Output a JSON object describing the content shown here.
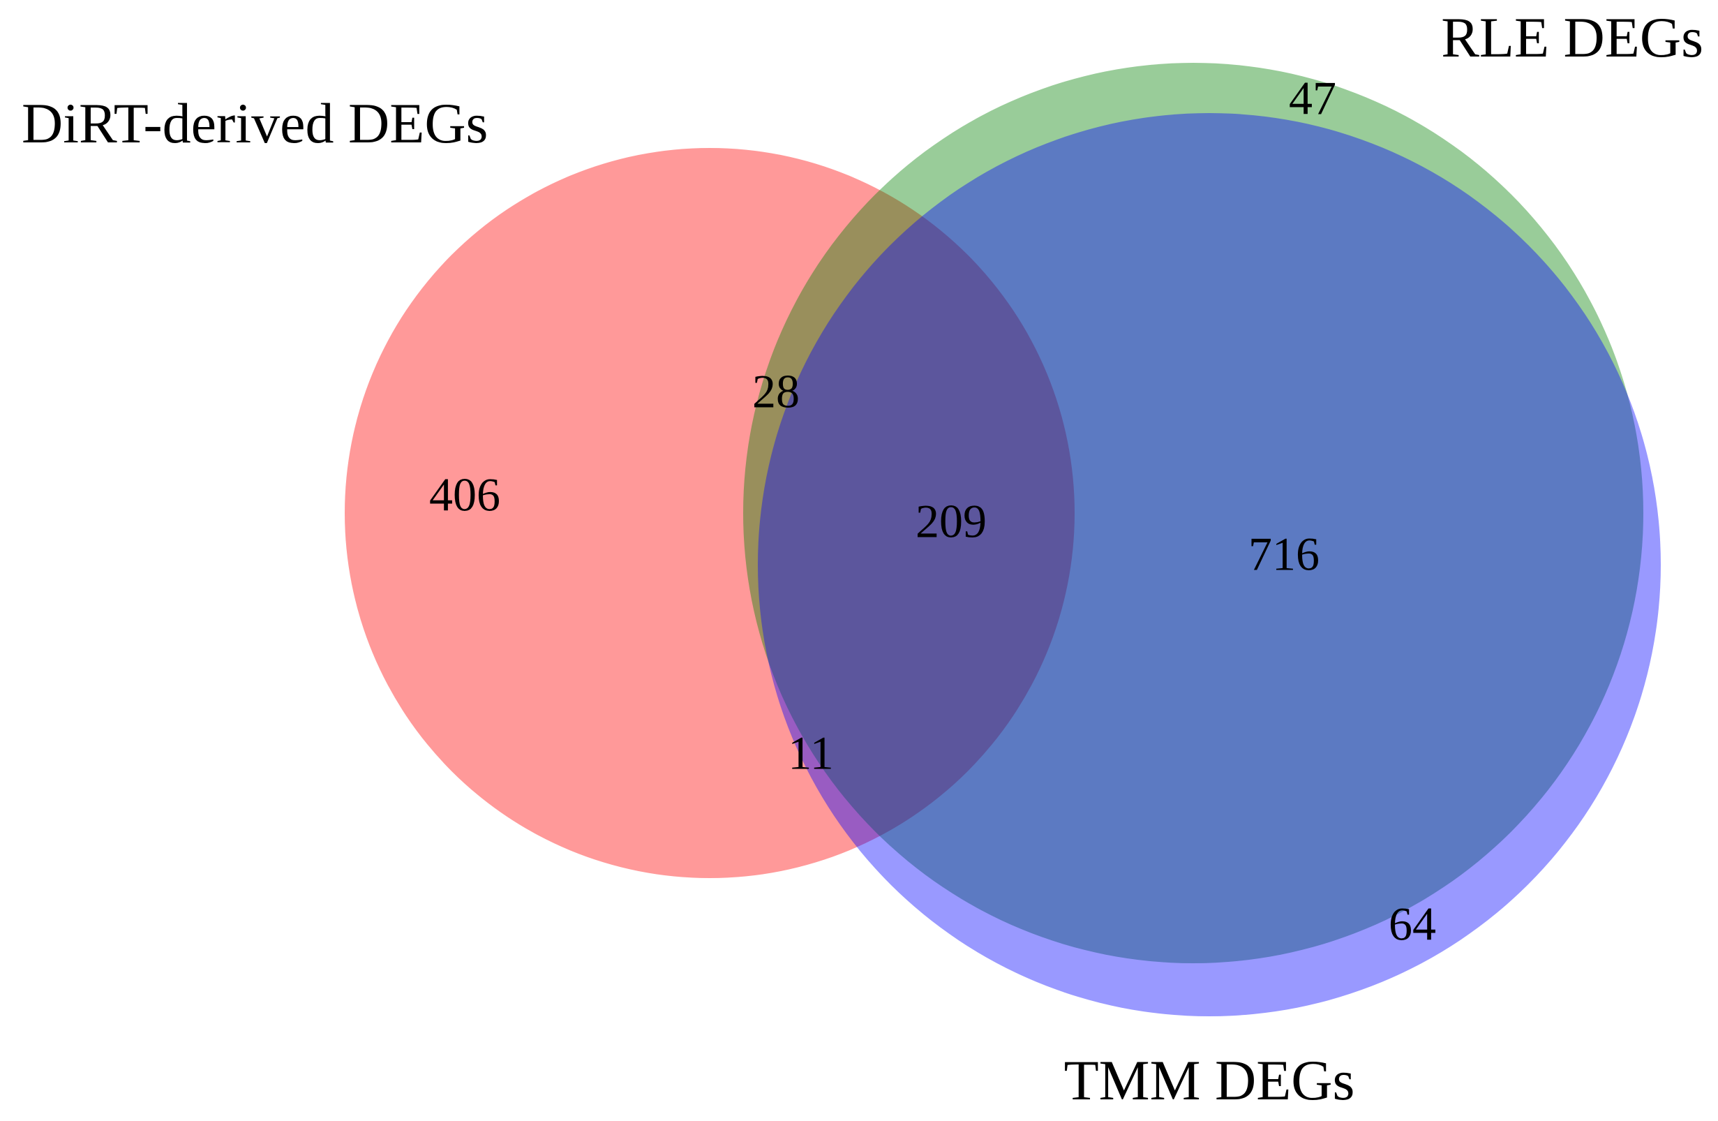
{
  "chart_data": {
    "type": "venn",
    "sets": [
      {
        "name": "DiRT-derived DEGs",
        "color": "#ff0000"
      },
      {
        "name": "RLE DEGs",
        "color": "#008000"
      },
      {
        "name": "TMM DEGs",
        "color": "#0000ff"
      }
    ],
    "values": [
      406,
      28,
      209,
      11,
      47,
      716,
      64
    ]
  }
}
